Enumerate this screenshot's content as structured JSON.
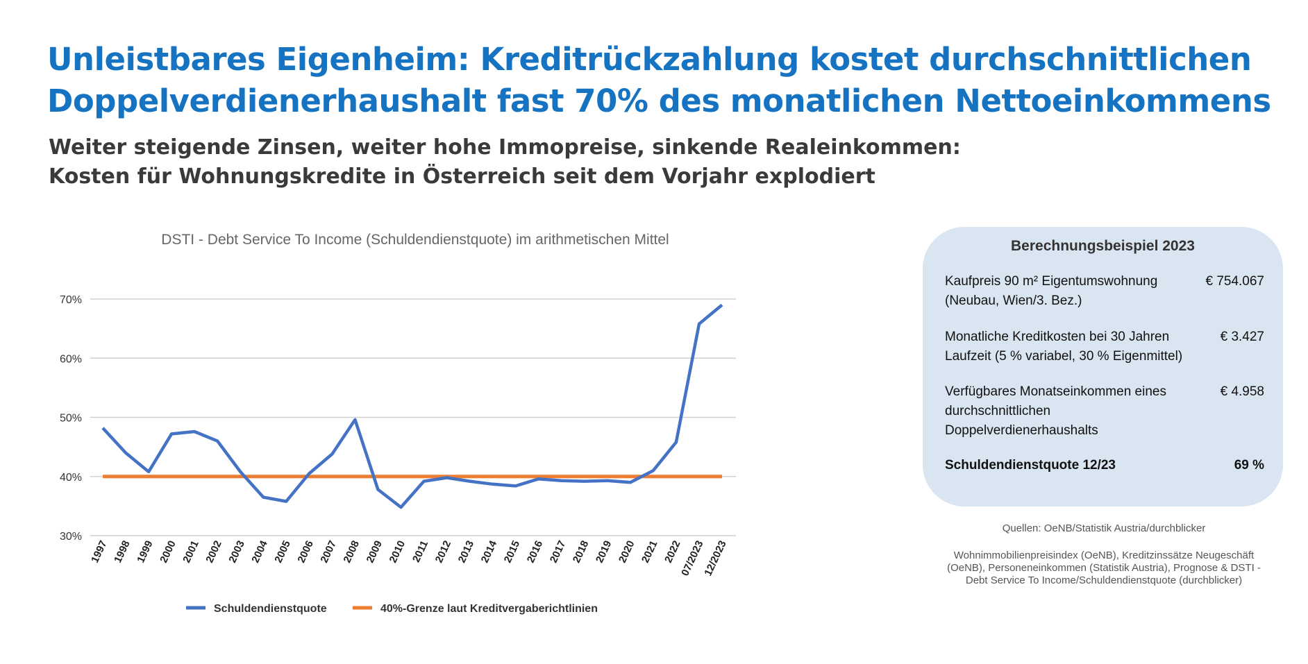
{
  "header": {
    "title_line1": "Unleistbares Eigenheim: Kreditrückzahlung kostet durchschnittlichen",
    "title_line2": "Doppelverdienerhaushalt fast 70% des monatlichen Nettoeinkommens",
    "subtitle_line1": "Weiter steigende Zinsen, weiter hohe Immopreise, sinkende Realeinkommen:",
    "subtitle_line2": "Kosten für Wohnungskredite in Österreich seit dem Vorjahr explodiert"
  },
  "chart_data": {
    "type": "line",
    "title": "DSTI - Debt Service To Income (Schuldendienstquote) im arithmetischen Mittel",
    "categories": [
      "1997",
      "1998",
      "1999",
      "2000",
      "2001",
      "2002",
      "2003",
      "2004",
      "2005",
      "2006",
      "2007",
      "2008",
      "2009",
      "2010",
      "2011",
      "2012",
      "2013",
      "2014",
      "2015",
      "2016",
      "2017",
      "2018",
      "2019",
      "2020",
      "2021",
      "2022",
      "07/2023",
      "12/2023"
    ],
    "series": [
      {
        "name": "Schuldendienstquote",
        "color": "#4472c4",
        "values": [
          48.2,
          44.0,
          40.8,
          47.2,
          47.6,
          46.0,
          40.8,
          36.5,
          35.8,
          40.5,
          43.8,
          49.6,
          37.8,
          34.8,
          39.2,
          39.8,
          39.2,
          38.7,
          38.4,
          39.6,
          39.3,
          39.2,
          39.3,
          39.0,
          41.0,
          45.8,
          65.8,
          69.0
        ]
      },
      {
        "name": "40%-Grenze laut Kreditvergaberichtlinien",
        "color": "#ed7d31",
        "values": [
          40,
          40,
          40,
          40,
          40,
          40,
          40,
          40,
          40,
          40,
          40,
          40,
          40,
          40,
          40,
          40,
          40,
          40,
          40,
          40,
          40,
          40,
          40,
          40,
          40,
          40,
          40,
          40
        ]
      }
    ],
    "yticks": [
      "70%",
      "60%",
      "50%",
      "40%",
      "30%"
    ],
    "ytick_values": [
      70,
      60,
      50,
      40,
      30
    ],
    "ylim": [
      30,
      70
    ],
    "grid": true,
    "legend_placement": "bottom"
  },
  "calc": {
    "title": "Berechnungsbeispiel 2023",
    "rows": [
      {
        "label": "Kaufpreis 90 m² Eigentumswohnung (Neubau, Wien/3. Bez.)",
        "value": "€ 754.067"
      },
      {
        "label": "Monatliche Kreditkosten bei 30 Jahren Laufzeit (5 % variabel, 30 % Eigenmittel)",
        "value": "€ 3.427"
      },
      {
        "label": "Verfügbares Monatseinkommen eines durchschnittlichen Doppelverdienerhaushalts",
        "value": "€ 4.958"
      },
      {
        "label": "Schuldendienstquote 12/23",
        "value": "69 %"
      }
    ]
  },
  "sources": {
    "line1": "Quellen: OeNB/Statistik Austria/durchblicker",
    "line2": "Wohnimmobilienpreisindex (OeNB), Kreditzinssätze Neugeschäft (OeNB), Personeneinkommen (Statistik Austria), Prognose & DSTI - Debt Service To Income/Schuldendienstquote (durchblicker)"
  }
}
